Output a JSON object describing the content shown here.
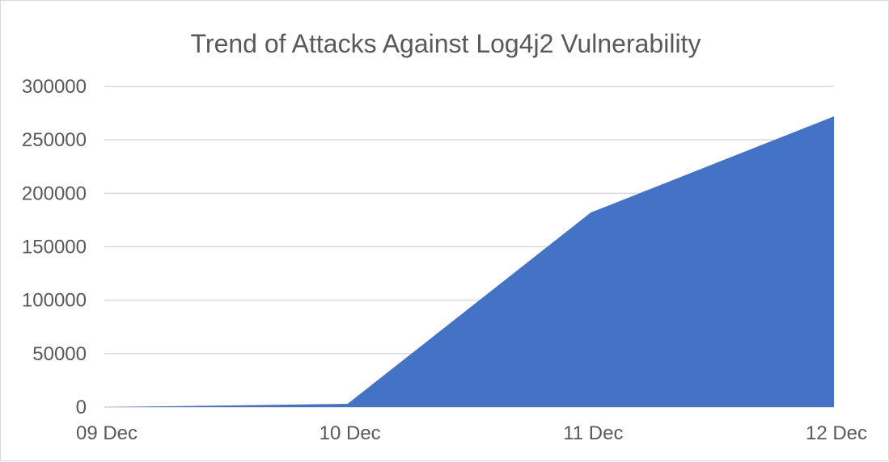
{
  "chart_data": {
    "type": "area",
    "title": "Trend of Attacks Against Log4j2 Vulnerability",
    "xlabel": "",
    "ylabel": "",
    "categories": [
      "09 Dec",
      "10 Dec",
      "11 Dec",
      "12 Dec"
    ],
    "series": [
      {
        "values": [
          0,
          3000,
          182000,
          272000
        ]
      }
    ],
    "ylim": [
      0,
      300000
    ],
    "yticks": [
      "0",
      "50000",
      "100000",
      "150000",
      "200000",
      "250000",
      "300000"
    ],
    "grid": true,
    "legend": "none",
    "colors": {
      "area": "#4472c4",
      "grid": "#d9d9d9",
      "text": "#595959"
    }
  }
}
